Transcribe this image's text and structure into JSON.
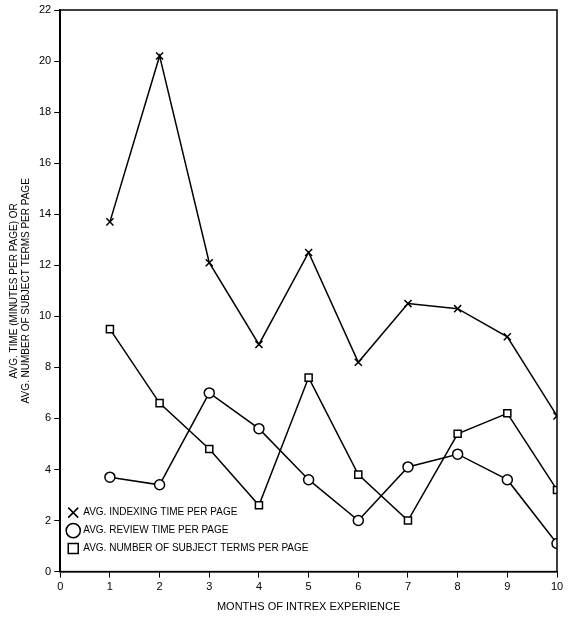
{
  "chart_data": {
    "type": "line",
    "x_label": "MONTHS OF INTREX EXPERIENCE",
    "y_label": [
      "AVG. TIME (MINUTES PER PAGE) OR",
      "AVG. NUMBER OF SUBJECT TERMS PER PAGE"
    ],
    "x": [
      1,
      2,
      3,
      4,
      5,
      6,
      7,
      8,
      9,
      10
    ],
    "series": [
      {
        "name": "AVG. INDEXING TIME PER PAGE",
        "color": "#000000",
        "marker": "x",
        "values": [
          13.7,
          20.2,
          12.1,
          8.9,
          12.5,
          8.2,
          10.5,
          10.3,
          9.2,
          6.1
        ]
      },
      {
        "name": "AVG. REVIEW TIME PER PAGE",
        "color": "#000000",
        "marker": "circle",
        "values": [
          3.7,
          3.4,
          7.0,
          5.6,
          3.6,
          2.0,
          4.1,
          4.6,
          3.6,
          1.1
        ]
      },
      {
        "name": "AVG. NUMBER OF SUBJECT TERMS PER PAGE",
        "color": "#000000",
        "marker": "square",
        "values": [
          9.5,
          6.6,
          4.8,
          2.6,
          7.6,
          3.8,
          2.0,
          5.4,
          6.2,
          3.2
        ]
      }
    ],
    "xlim": [
      0,
      10
    ],
    "xticks": [
      0,
      1,
      2,
      3,
      4,
      5,
      6,
      7,
      8,
      9,
      10
    ],
    "ylim": [
      0,
      22
    ],
    "yticks": [
      0,
      2,
      4,
      6,
      8,
      10,
      12,
      14,
      16,
      18,
      20,
      22
    ],
    "grid": false,
    "legend": "upper right"
  }
}
